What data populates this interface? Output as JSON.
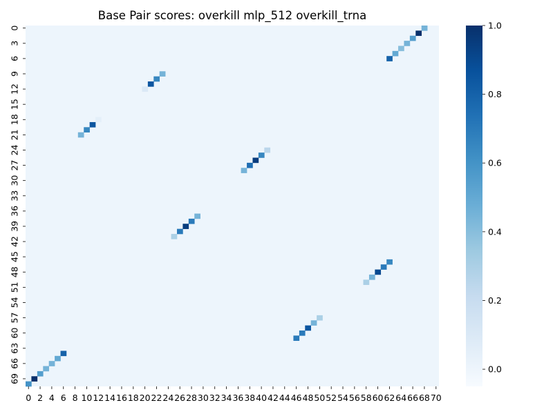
{
  "chart_data": {
    "type": "heatmap",
    "title": "Base Pair scores: overkill mlp_512 overkill_trna",
    "xlabel": "",
    "ylabel": "",
    "n_rows": 71,
    "n_cols": 71,
    "x_tick_labels": [
      "0",
      "2",
      "4",
      "6",
      "8",
      "10",
      "12",
      "14",
      "16",
      "18",
      "20",
      "22",
      "24",
      "26",
      "28",
      "30",
      "32",
      "34",
      "36",
      "38",
      "40",
      "42",
      "44",
      "46",
      "48",
      "50",
      "52",
      "54",
      "56",
      "58",
      "60",
      "62",
      "64",
      "66",
      "68",
      "70"
    ],
    "y_tick_labels": [
      "0",
      "3",
      "6",
      "9",
      "12",
      "15",
      "18",
      "21",
      "24",
      "27",
      "30",
      "33",
      "36",
      "39",
      "42",
      "45",
      "48",
      "51",
      "54",
      "57",
      "60",
      "63",
      "66",
      "69"
    ],
    "colorbar": {
      "vmin": -0.05,
      "vmax": 1.0,
      "ticks": [
        "0.0",
        "0.2",
        "0.4",
        "0.6",
        "0.8",
        "1.0"
      ],
      "colormap": "Blues"
    },
    "background_value": 0.0,
    "cells": [
      [
        0,
        68,
        0.45
      ],
      [
        1,
        67,
        1.0
      ],
      [
        2,
        66,
        0.55
      ],
      [
        3,
        65,
        0.45
      ],
      [
        4,
        64,
        0.4
      ],
      [
        5,
        63,
        0.5
      ],
      [
        6,
        62,
        0.8
      ],
      [
        9,
        23,
        0.45
      ],
      [
        10,
        22,
        0.65
      ],
      [
        11,
        21,
        0.85
      ],
      [
        12,
        20,
        0.1
      ],
      [
        18,
        12,
        0.05
      ],
      [
        19,
        11,
        0.85
      ],
      [
        20,
        10,
        0.65
      ],
      [
        21,
        9,
        0.45
      ],
      [
        24,
        41,
        0.25
      ],
      [
        25,
        40,
        0.65
      ],
      [
        26,
        39,
        0.95
      ],
      [
        27,
        38,
        0.75
      ],
      [
        28,
        37,
        0.45
      ],
      [
        37,
        29,
        0.45
      ],
      [
        38,
        28,
        0.7
      ],
      [
        39,
        27,
        0.95
      ],
      [
        40,
        26,
        0.7
      ],
      [
        41,
        25,
        0.3
      ],
      [
        46,
        62,
        0.65
      ],
      [
        47,
        61,
        0.7
      ],
      [
        48,
        60,
        0.9
      ],
      [
        49,
        59,
        0.45
      ],
      [
        50,
        58,
        0.3
      ],
      [
        57,
        50,
        0.3
      ],
      [
        58,
        49,
        0.45
      ],
      [
        59,
        48,
        0.85
      ],
      [
        60,
        47,
        0.7
      ],
      [
        61,
        46,
        0.7
      ],
      [
        64,
        6,
        0.8
      ],
      [
        65,
        5,
        0.5
      ],
      [
        66,
        4,
        0.45
      ],
      [
        67,
        3,
        0.45
      ],
      [
        68,
        2,
        0.55
      ],
      [
        69,
        1,
        1.0
      ],
      [
        70,
        0,
        0.6
      ]
    ]
  }
}
